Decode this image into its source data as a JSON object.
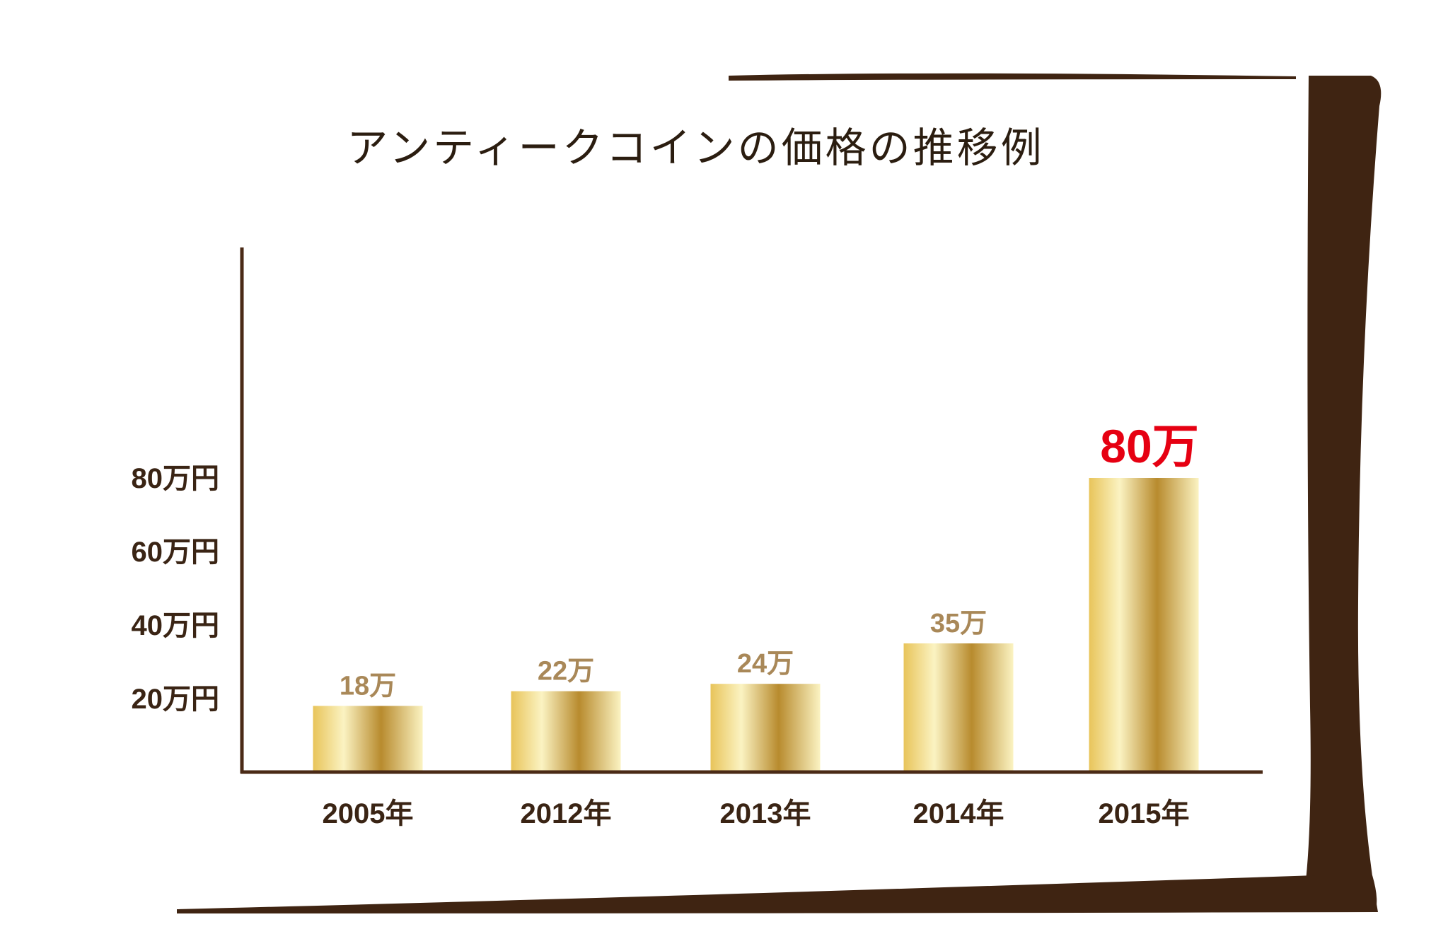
{
  "colors": {
    "frame": "#3f2412",
    "axis": "#4a2a16",
    "tick_text": "#3a2414",
    "value_label": "#a98858",
    "highlight_label": "#e60012",
    "gold_light": "#fbf3c2",
    "gold_mid": "#e8c45a",
    "gold_dark": "#b88b2e"
  },
  "chart_data": {
    "type": "bar",
    "title": "アンティークコインの価格の推移例",
    "categories": [
      "2005年",
      "2012年",
      "2013年",
      "2014年",
      "2015年"
    ],
    "values": [
      18,
      22,
      24,
      35,
      80
    ],
    "value_labels": [
      "18万",
      "22万",
      "24万",
      "35万",
      "80万"
    ],
    "highlight_index": 4,
    "yticks": [
      20,
      40,
      60,
      80
    ],
    "ytick_labels": [
      "20万円",
      "40万円",
      "60万円",
      "80万円"
    ],
    "xlabel": "",
    "ylabel": "",
    "grid": false,
    "legend": "none"
  }
}
